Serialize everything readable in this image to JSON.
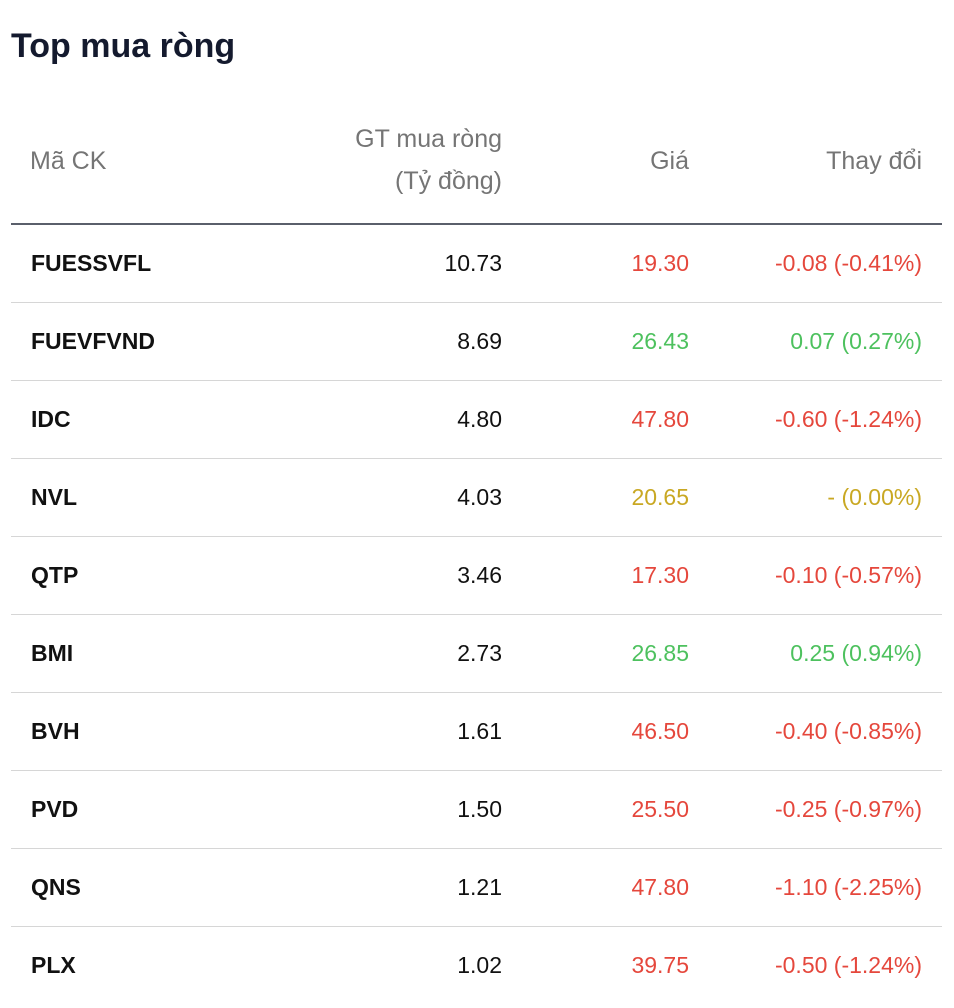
{
  "title": "Top mua ròng",
  "columns": {
    "code": "Mã CK",
    "value_line1": "GT mua ròng",
    "value_line2": "(Tỷ đồng)",
    "price": "Giá",
    "change": "Thay đổi"
  },
  "colors": {
    "down": "#e5473c",
    "up": "#4dc15e",
    "reference": "#c9a823"
  },
  "rows": [
    {
      "code": "FUESSVFL",
      "value": "10.73",
      "price": "19.30",
      "change": "-0.08 (-0.41%)",
      "trend": "down"
    },
    {
      "code": "FUEVFVND",
      "value": "8.69",
      "price": "26.43",
      "change": "0.07 (0.27%)",
      "trend": "up"
    },
    {
      "code": "IDC",
      "value": "4.80",
      "price": "47.80",
      "change": "-0.60 (-1.24%)",
      "trend": "down"
    },
    {
      "code": "NVL",
      "value": "4.03",
      "price": "20.65",
      "change": "- (0.00%)",
      "trend": "ref"
    },
    {
      "code": "QTP",
      "value": "3.46",
      "price": "17.30",
      "change": "-0.10 (-0.57%)",
      "trend": "down"
    },
    {
      "code": "BMI",
      "value": "2.73",
      "price": "26.85",
      "change": "0.25 (0.94%)",
      "trend": "up"
    },
    {
      "code": "BVH",
      "value": "1.61",
      "price": "46.50",
      "change": "-0.40 (-0.85%)",
      "trend": "down"
    },
    {
      "code": "PVD",
      "value": "1.50",
      "price": "25.50",
      "change": "-0.25 (-0.97%)",
      "trend": "down"
    },
    {
      "code": "QNS",
      "value": "1.21",
      "price": "47.80",
      "change": "-1.10 (-2.25%)",
      "trend": "down"
    },
    {
      "code": "PLX",
      "value": "1.02",
      "price": "39.75",
      "change": "-0.50 (-1.24%)",
      "trend": "down"
    }
  ]
}
